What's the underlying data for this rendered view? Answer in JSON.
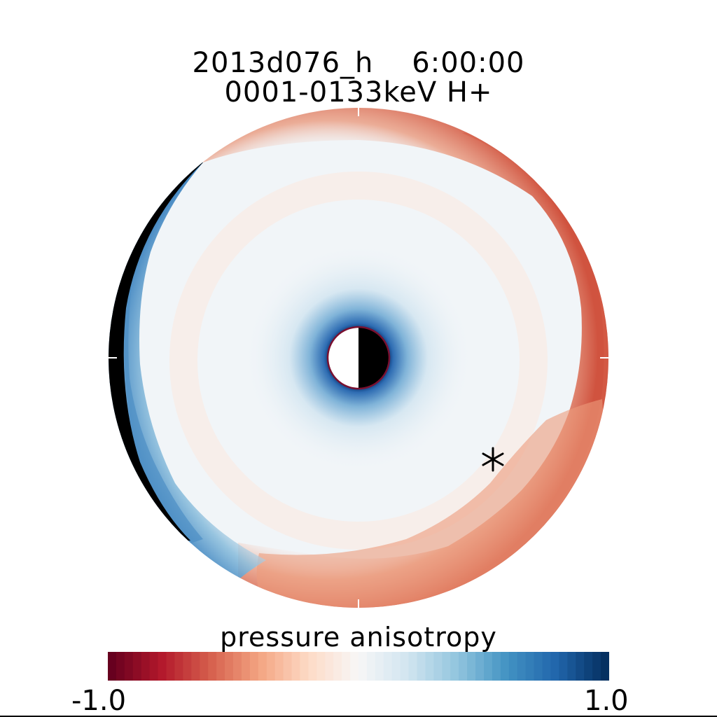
{
  "title_line1": "2013d076_h    6:00:00",
  "title_line2": "0001-0133keV H+",
  "colorbar": {
    "label": "pressure anisotropy",
    "min_label": "-1.0",
    "max_label": "1.0",
    "colors": [
      "#67001f",
      "#b2182b",
      "#d6604d",
      "#f4a582",
      "#fddbc7",
      "#f7f7f7",
      "#d1e5f0",
      "#92c5de",
      "#4393c3",
      "#2166ac",
      "#053061"
    ]
  },
  "chart_data": {
    "type": "heatmap",
    "title": "2013d076_h    6:00:00 / 0001-0133keV H+",
    "colorbar_label": "pressure anisotropy",
    "value_range": [
      -1.0,
      1.0
    ],
    "polar_map": {
      "earth": "inner disk, dayside white / nightside black",
      "shadow": "black crescent on left limb",
      "marker": "asterisk on right side",
      "regions": [
        {
          "region": "outer right and upper edge",
          "approx_value": -0.35
        },
        {
          "region": "lower right band",
          "approx_value": -0.2
        },
        {
          "region": "center ring",
          "approx_value": 0.05
        },
        {
          "region": "inner edge near earth",
          "approx_value": 0.6
        },
        {
          "region": "outer left edge",
          "approx_value": 0.4
        }
      ]
    }
  }
}
